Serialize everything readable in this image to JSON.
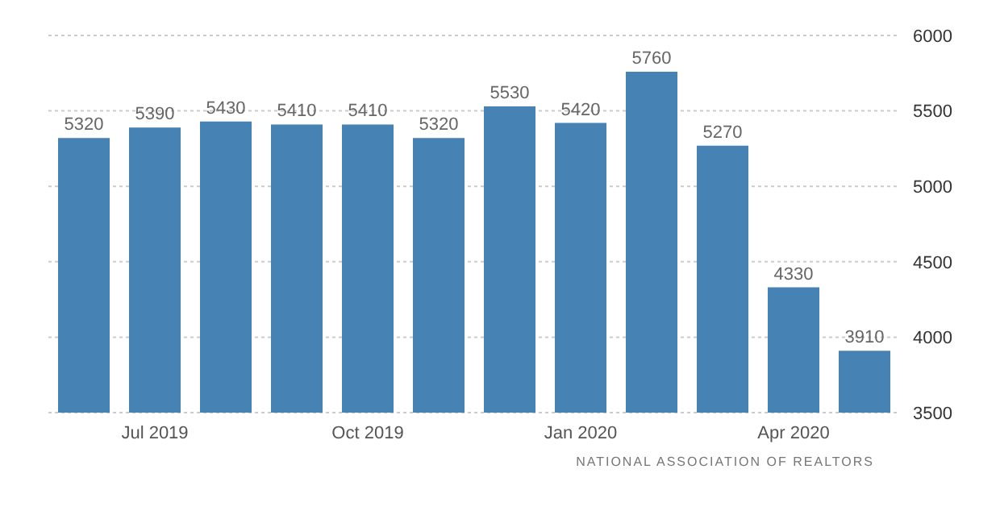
{
  "chart_data": {
    "type": "bar",
    "categories": [
      null,
      "Jul 2019",
      null,
      null,
      "Oct 2019",
      null,
      null,
      "Jan 2020",
      null,
      null,
      "Apr 2020",
      null
    ],
    "values": [
      5320,
      5390,
      5430,
      5410,
      5410,
      5320,
      5530,
      5420,
      5760,
      5270,
      4330,
      3910
    ],
    "color": "#4682b4",
    "data_labels": true,
    "ylim": [
      3500,
      6000
    ],
    "yticks": [
      3500,
      4000,
      4500,
      5000,
      5500,
      6000
    ],
    "grid": "y",
    "annotations": [
      "NATIONAL ASSOCIATION OF REALTORS"
    ]
  }
}
